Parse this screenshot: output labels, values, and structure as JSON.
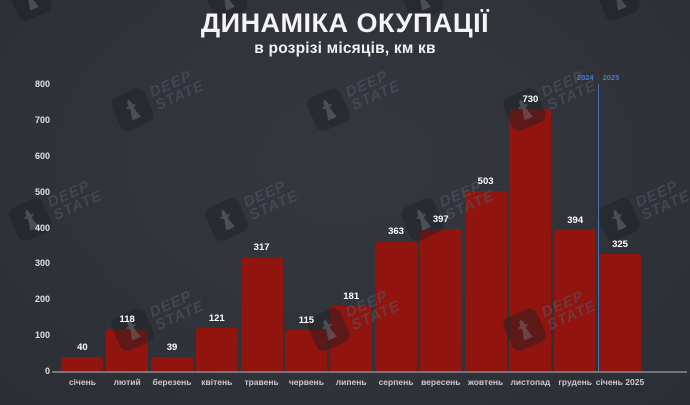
{
  "header": {
    "title": "ДИНАМІКА ОКУПАЦІЇ",
    "subtitle": "в розрізі місяців, км кв"
  },
  "watermark": {
    "line1": "DEEP",
    "line2": "STATE"
  },
  "year_divider": {
    "left_label": "2024",
    "right_label": "2025",
    "color": "#4a72b4"
  },
  "chart_data": {
    "type": "bar",
    "title": "ДИНАМІКА ОКУПАЦІЇ",
    "subtitle": "в розрізі місяців, км кв",
    "categories": [
      "січень",
      "лютий",
      "березень",
      "квітень",
      "травень",
      "червень",
      "липень",
      "серпень",
      "вересень",
      "жовтень",
      "листопад",
      "грудень",
      "січень 2025"
    ],
    "values": [
      40,
      118,
      39,
      121,
      317,
      115,
      181,
      363,
      397,
      503,
      730,
      394,
      325
    ],
    "xlabel": "",
    "ylabel": "",
    "ylim": [
      0,
      800
    ],
    "ytick_step": 100,
    "grid": false,
    "legend": false,
    "bar_color": "#92140f",
    "divider_before_category_index": 12
  }
}
